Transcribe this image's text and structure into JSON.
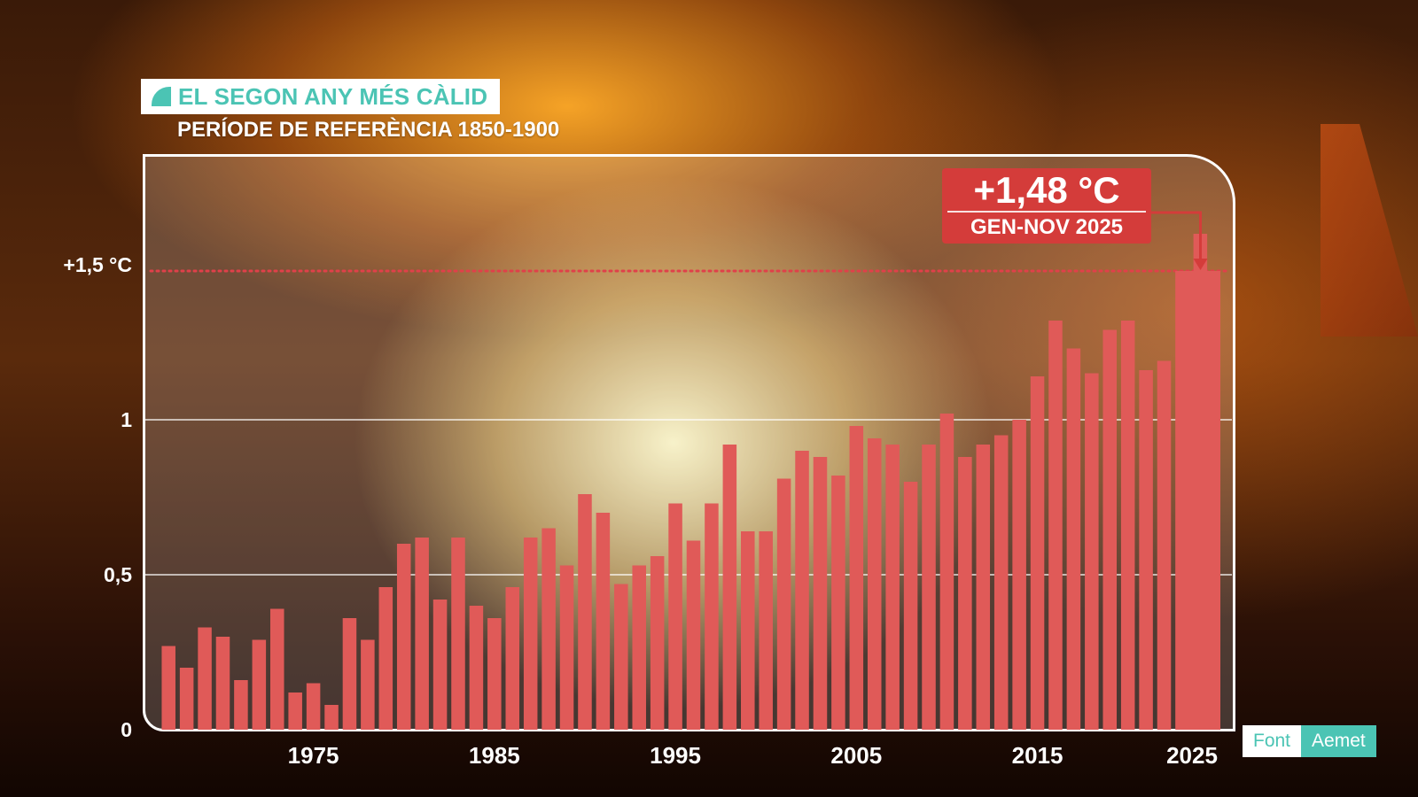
{
  "title": "EL SEGON ANY MÉS CÀLID",
  "subtitle": "PERÍODE DE REFERÈNCIA 1850-1900",
  "annotation": {
    "value": "+1,48 °C",
    "period": "GEN-NOV 2025"
  },
  "source": {
    "label": "Font",
    "name": "Aemet"
  },
  "colors": {
    "bar": "#e05a58",
    "accent": "#4bc4b4",
    "annotation": "#d43c3a",
    "threshold_line": "#e0404a"
  },
  "icons": {
    "title_icon": "leaf-icon"
  },
  "chart_data": {
    "type": "bar",
    "title": "EL SEGON ANY MÉS CÀLID",
    "subtitle": "PERÍODE DE REFERÈNCIA 1850-1900",
    "xlabel": "",
    "ylabel": "",
    "ylim": [
      0,
      1.8
    ],
    "grid": true,
    "x_tick_labels": [
      "1975",
      "1985",
      "1995",
      "2005",
      "2015",
      "2025"
    ],
    "x_tick_years": [
      1975,
      1985,
      1995,
      2005,
      2015,
      2025
    ],
    "y_ticks": [
      {
        "value": 0,
        "label": "0"
      },
      {
        "value": 0.5,
        "label": "0,5"
      },
      {
        "value": 1,
        "label": "1"
      },
      {
        "value": 1.5,
        "label": "+1,5 °C"
      }
    ],
    "reference_line": {
      "value": 1.48,
      "style": "dotted"
    },
    "x": [
      1967,
      1968,
      1969,
      1970,
      1971,
      1972,
      1973,
      1974,
      1975,
      1976,
      1977,
      1978,
      1979,
      1980,
      1981,
      1982,
      1983,
      1984,
      1985,
      1986,
      1987,
      1988,
      1989,
      1990,
      1991,
      1992,
      1993,
      1994,
      1995,
      1996,
      1997,
      1998,
      1999,
      2000,
      2001,
      2002,
      2003,
      2004,
      2005,
      2006,
      2007,
      2008,
      2009,
      2010,
      2011,
      2012,
      2013,
      2014,
      2015,
      2016,
      2017,
      2018,
      2019,
      2020,
      2021,
      2022,
      2023,
      2024,
      2025
    ],
    "values": [
      0.27,
      0.2,
      0.33,
      0.3,
      0.16,
      0.29,
      0.39,
      0.12,
      0.15,
      0.08,
      0.36,
      0.29,
      0.46,
      0.6,
      0.62,
      0.42,
      0.62,
      0.4,
      0.36,
      0.46,
      0.62,
      0.65,
      0.53,
      0.76,
      0.7,
      0.47,
      0.53,
      0.56,
      0.73,
      0.61,
      0.73,
      0.92,
      0.64,
      0.64,
      0.81,
      0.9,
      0.88,
      0.82,
      0.98,
      0.94,
      0.92,
      0.8,
      0.92,
      1.02,
      0.88,
      0.92,
      0.95,
      1.0,
      1.14,
      1.32,
      1.23,
      1.15,
      1.29,
      1.32,
      1.16,
      1.19,
      1.48,
      1.6,
      1.48
    ],
    "highlight": {
      "x": 2025,
      "value": 1.48,
      "label": "+1,48 °C",
      "period": "GEN-NOV 2025"
    }
  }
}
